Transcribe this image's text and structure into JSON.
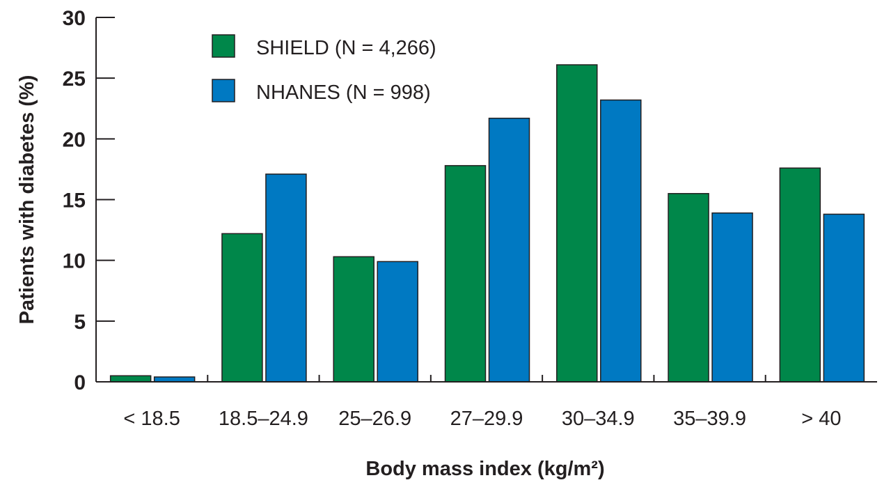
{
  "chart_data": {
    "type": "bar",
    "categories": [
      "< 18.5",
      "18.5–24.9",
      "25–26.9",
      "27–29.9",
      "30–34.9",
      "35–39.9",
      "> 40"
    ],
    "series": [
      {
        "name": "SHIELD (N = 4,266)",
        "color": "#00874a",
        "values": [
          0.5,
          12.2,
          10.3,
          17.8,
          26.1,
          15.5,
          17.6
        ]
      },
      {
        "name": "NHANES (N = 998)",
        "color": "#0079c2",
        "values": [
          0.4,
          17.1,
          9.9,
          21.7,
          23.2,
          13.9,
          13.8
        ]
      }
    ],
    "xlabel": "Body mass index (kg/m²)",
    "ylabel": "Patients with diabetes (%)",
    "ylim": [
      0,
      30
    ],
    "yticks": [
      0,
      5,
      10,
      15,
      20,
      25,
      30
    ],
    "grid": false,
    "legend_position": "top-left"
  }
}
